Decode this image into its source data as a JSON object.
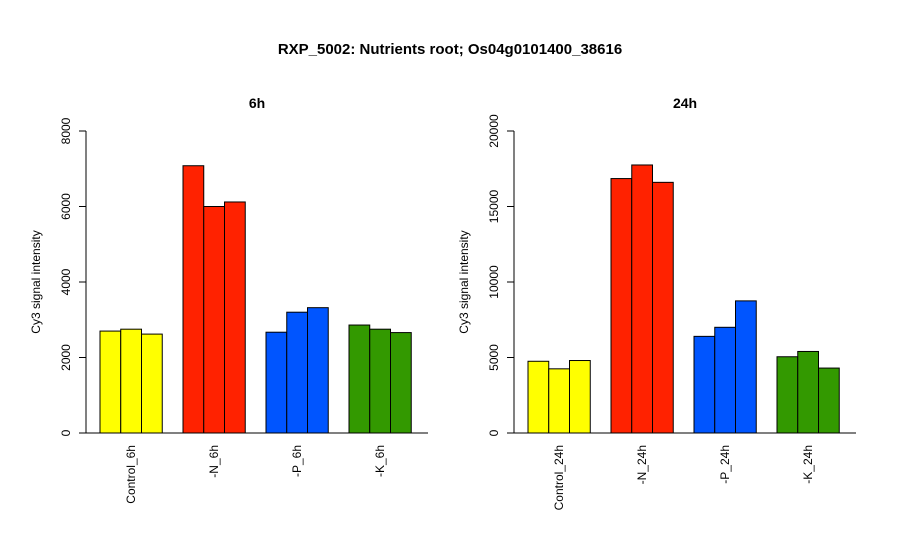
{
  "chart_data": {
    "title": "RXP_5002: Nutrients root; Os04g0101400_38616",
    "panels": [
      {
        "type": "bar",
        "title": "6h",
        "ylabel": "Cy3 signal intensity",
        "ylim": [
          0,
          8000
        ],
        "yticks": [
          0,
          2000,
          4000,
          6000,
          8000
        ],
        "groups": [
          {
            "label": "Control_6h",
            "color": "#ffff00",
            "values": [
              2700,
              2750,
              2620
            ]
          },
          {
            "label": "-N_6h",
            "color": "#ff2200",
            "values": [
              7080,
              6000,
              6120
            ]
          },
          {
            "label": "-P_6h",
            "color": "#0055ff",
            "values": [
              2670,
              3200,
              3320
            ]
          },
          {
            "label": "-K_6h",
            "color": "#339900",
            "values": [
              2860,
              2750,
              2660
            ]
          }
        ]
      },
      {
        "type": "bar",
        "title": "24h",
        "ylabel": "Cy3 signal intensity",
        "ylim": [
          0,
          20000
        ],
        "yticks": [
          0,
          5000,
          10000,
          15000,
          20000
        ],
        "groups": [
          {
            "label": "Control_24h",
            "color": "#ffff00",
            "values": [
              4750,
              4250,
              4800
            ]
          },
          {
            "label": "-N_24h",
            "color": "#ff2200",
            "values": [
              16850,
              17750,
              16600
            ]
          },
          {
            "label": "-P_24h",
            "color": "#0055ff",
            "values": [
              6400,
              7000,
              8750
            ]
          },
          {
            "label": "-K_24h",
            "color": "#339900",
            "values": [
              5050,
              5400,
              4300
            ]
          }
        ]
      }
    ]
  }
}
